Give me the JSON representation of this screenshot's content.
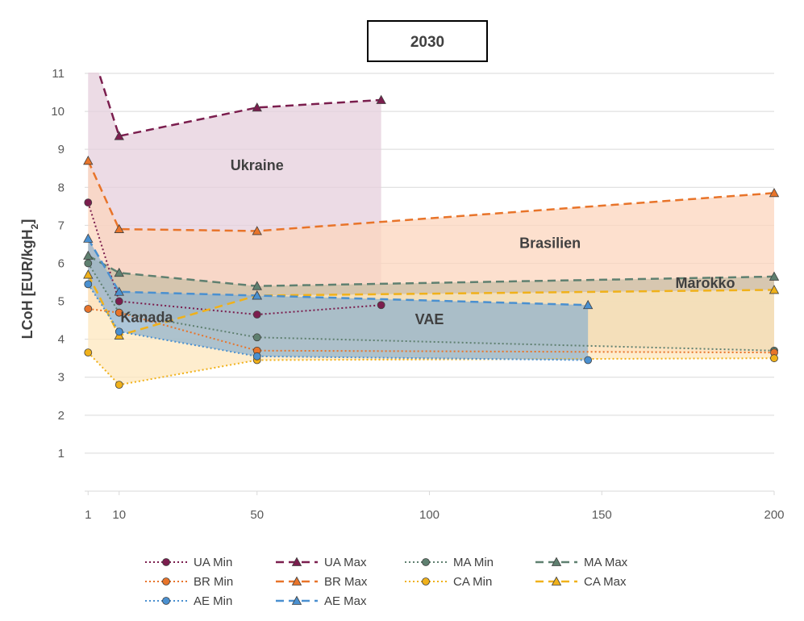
{
  "chart_data": {
    "type": "line",
    "title": "2030",
    "ylabel_main": "LCoH [EUR/kgH",
    "ylabel_sub": "2",
    "ylabel_close": "]",
    "xlabel": "",
    "xlim": [
      0,
      200
    ],
    "ylim": [
      0,
      11
    ],
    "x_ticks": [
      1,
      10,
      50,
      100,
      150,
      200
    ],
    "y_ticks": [
      1,
      2,
      3,
      4,
      5,
      6,
      7,
      8,
      9,
      10,
      11
    ],
    "grid": true,
    "legend_position": "bottom",
    "regions": [
      {
        "label": "Ukraine",
        "color": "#e5cfdc",
        "min_series": "UA Min",
        "max_series": "UA Max"
      },
      {
        "label": "Brasilien",
        "color": "#fcd6bd",
        "min_series": "BR Min",
        "max_series": "BR Max"
      },
      {
        "label": "Marokko",
        "color": "#c9bfa6",
        "min_series": "MA Min",
        "max_series": "MA Max"
      },
      {
        "label": "Kanada",
        "color": "#fde7bd",
        "min_series": "CA Min",
        "max_series": "CA Max"
      },
      {
        "label": "VAE",
        "color": "#92b3cc",
        "min_series": "AE Min",
        "max_series": "AE Max"
      }
    ],
    "series": [
      {
        "name": "UA Min",
        "color": "#7b1e4e",
        "marker": "circle",
        "dash": "dot",
        "x": [
          1,
          10,
          50,
          86
        ],
        "y": [
          7.6,
          5.0,
          4.65,
          4.9
        ]
      },
      {
        "name": "UA Max",
        "color": "#7b1e4e",
        "marker": "triangle",
        "dash": "dash",
        "x": [
          1,
          10,
          50,
          86
        ],
        "y": [
          11.9,
          9.35,
          10.1,
          10.3
        ]
      },
      {
        "name": "MA Min",
        "color": "#5f8070",
        "marker": "circle",
        "dash": "dot",
        "x": [
          1,
          10,
          50,
          200
        ],
        "y": [
          6.0,
          4.7,
          4.05,
          3.7
        ]
      },
      {
        "name": "MA Max",
        "color": "#5f8070",
        "marker": "triangle",
        "dash": "dash",
        "x": [
          1,
          10,
          50,
          200
        ],
        "y": [
          6.2,
          5.75,
          5.4,
          5.65
        ]
      },
      {
        "name": "BR Min",
        "color": "#e8742a",
        "marker": "circle",
        "dash": "dot",
        "x": [
          1,
          10,
          50,
          200
        ],
        "y": [
          4.8,
          4.7,
          3.7,
          3.65
        ]
      },
      {
        "name": "BR Max",
        "color": "#e8742a",
        "marker": "triangle",
        "dash": "dash",
        "x": [
          1,
          10,
          50,
          200
        ],
        "y": [
          8.7,
          6.9,
          6.85,
          7.85
        ]
      },
      {
        "name": "CA Min",
        "color": "#f0b11a",
        "marker": "circle",
        "dash": "dot",
        "x": [
          1,
          10,
          50,
          200
        ],
        "y": [
          3.65,
          2.8,
          3.45,
          3.5
        ]
      },
      {
        "name": "CA Max",
        "color": "#f0b11a",
        "marker": "triangle",
        "dash": "dash",
        "x": [
          1,
          10,
          50,
          200
        ],
        "y": [
          5.7,
          4.1,
          5.15,
          5.3
        ]
      },
      {
        "name": "AE Min",
        "color": "#4a90d0",
        "marker": "circle",
        "dash": "dot",
        "x": [
          1,
          10,
          50,
          146
        ],
        "y": [
          5.45,
          4.2,
          3.55,
          3.45
        ]
      },
      {
        "name": "AE Max",
        "color": "#4a90d0",
        "marker": "triangle",
        "dash": "dash",
        "x": [
          1,
          10,
          50,
          146
        ],
        "y": [
          6.65,
          5.25,
          5.15,
          4.9
        ]
      }
    ]
  }
}
